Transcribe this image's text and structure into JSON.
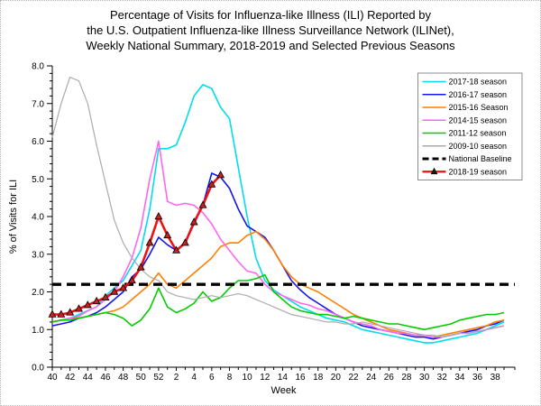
{
  "title": {
    "line1": "Percentage of Visits for Influenza-like Illness (ILI) Reported by",
    "line2": "the U.S. Outpatient Influenza-like Illness Surveillance Network (ILINet),",
    "line3": "Weekly National Summary, 2018-2019 and Selected Previous Seasons"
  },
  "axes": {
    "xlabel": "Week",
    "ylabel": "% of Visits for ILI",
    "y_tick_labels": [
      "0.0",
      "1.0",
      "2.0",
      "3.0",
      "4.0",
      "5.0",
      "6.0",
      "7.0",
      "8.0"
    ],
    "x_tick_labels": [
      "40",
      "42",
      "44",
      "46",
      "48",
      "50",
      "52",
      "2",
      "4",
      "6",
      "8",
      "10",
      "12",
      "14",
      "16",
      "18",
      "20",
      "22",
      "24",
      "26",
      "28",
      "30",
      "32",
      "34",
      "36",
      "38"
    ]
  },
  "chart_data": {
    "type": "line",
    "title": "Percentage of Visits for Influenza-like Illness (ILI) Reported by the U.S. Outpatient Influenza-like Illness Surveillance Network (ILINet), Weekly National Summary, 2018-2019 and Selected Previous Seasons",
    "xlabel": "Week",
    "ylabel": "% of Visits for ILI",
    "ylim": [
      0,
      8
    ],
    "grid": false,
    "legend_position": "top-right",
    "x_weeks": [
      40,
      41,
      42,
      43,
      44,
      45,
      46,
      47,
      48,
      49,
      50,
      51,
      52,
      1,
      2,
      3,
      4,
      5,
      6,
      7,
      8,
      9,
      10,
      11,
      12,
      13,
      14,
      15,
      16,
      17,
      18,
      19,
      20,
      21,
      22,
      23,
      24,
      25,
      26,
      27,
      28,
      29,
      30,
      31,
      32,
      33,
      34,
      35,
      36,
      37,
      38,
      39
    ],
    "baseline": {
      "label": "National Baseline",
      "value": 2.2,
      "color": "#000000",
      "style": "dashed"
    },
    "series": [
      {
        "name": "2017-18 season",
        "color": "#00DCF0",
        "values": [
          1.2,
          1.25,
          1.3,
          1.4,
          1.5,
          1.6,
          1.9,
          2.1,
          2.3,
          2.7,
          3.1,
          4.2,
          5.8,
          5.8,
          5.9,
          6.5,
          7.2,
          7.5,
          7.4,
          6.9,
          6.6,
          5.3,
          4.0,
          2.9,
          2.3,
          2.05,
          1.9,
          1.75,
          1.6,
          1.5,
          1.4,
          1.3,
          1.25,
          1.2,
          1.1,
          1.0,
          0.95,
          0.9,
          0.85,
          0.8,
          0.75,
          0.7,
          0.65,
          0.65,
          0.7,
          0.75,
          0.8,
          0.85,
          0.9,
          1.0,
          1.1,
          1.2
        ]
      },
      {
        "name": "2016-17 season",
        "color": "#1414F0",
        "values": [
          1.1,
          1.15,
          1.2,
          1.3,
          1.35,
          1.45,
          1.6,
          1.8,
          2.0,
          2.4,
          2.6,
          3.0,
          3.45,
          3.25,
          3.1,
          3.3,
          3.8,
          4.3,
          5.15,
          5.05,
          4.75,
          4.2,
          3.75,
          3.6,
          3.45,
          3.1,
          2.7,
          2.3,
          2.05,
          1.85,
          1.7,
          1.55,
          1.4,
          1.3,
          1.2,
          1.1,
          1.05,
          1.0,
          0.95,
          0.9,
          0.85,
          0.8,
          0.8,
          0.75,
          0.8,
          0.85,
          0.9,
          0.95,
          1.0,
          1.1,
          1.15,
          1.25
        ]
      },
      {
        "name": "2015-16 Season",
        "color": "#FF7F00",
        "values": [
          1.2,
          1.25,
          1.3,
          1.3,
          1.35,
          1.4,
          1.45,
          1.5,
          1.6,
          1.8,
          2.0,
          2.2,
          2.5,
          2.2,
          2.1,
          2.3,
          2.5,
          2.7,
          2.9,
          3.2,
          3.3,
          3.3,
          3.5,
          3.6,
          3.4,
          3.1,
          2.7,
          2.4,
          2.2,
          2.1,
          2.0,
          1.85,
          1.7,
          1.55,
          1.4,
          1.3,
          1.2,
          1.1,
          1.0,
          0.95,
          0.9,
          0.85,
          0.85,
          0.8,
          0.85,
          0.9,
          0.95,
          1.0,
          1.05,
          1.1,
          1.2,
          1.25
        ]
      },
      {
        "name": "2014-15 season",
        "color": "#FF66F0",
        "values": [
          1.2,
          1.25,
          1.3,
          1.35,
          1.5,
          1.6,
          1.8,
          2.0,
          2.4,
          2.9,
          3.7,
          5.0,
          6.0,
          4.4,
          4.3,
          4.35,
          4.3,
          4.1,
          3.8,
          3.4,
          3.1,
          2.8,
          2.55,
          2.5,
          2.2,
          2.0,
          1.9,
          1.8,
          1.7,
          1.65,
          1.55,
          1.5,
          1.4,
          1.3,
          1.2,
          1.15,
          1.1,
          1.0,
          0.95,
          0.9,
          0.9,
          0.85,
          0.85,
          0.8,
          0.8,
          0.85,
          0.9,
          0.9,
          0.95,
          1.0,
          1.05,
          1.1
        ]
      },
      {
        "name": "2011-12 season",
        "color": "#00CC00",
        "values": [
          1.2,
          1.25,
          1.25,
          1.3,
          1.35,
          1.4,
          1.45,
          1.4,
          1.3,
          1.1,
          1.25,
          1.55,
          2.1,
          1.6,
          1.45,
          1.55,
          1.7,
          2.0,
          1.75,
          1.85,
          2.1,
          2.3,
          2.3,
          2.35,
          2.45,
          2.0,
          1.8,
          1.6,
          1.5,
          1.45,
          1.4,
          1.4,
          1.35,
          1.3,
          1.35,
          1.3,
          1.25,
          1.2,
          1.15,
          1.15,
          1.1,
          1.05,
          1.0,
          1.05,
          1.1,
          1.15,
          1.25,
          1.3,
          1.35,
          1.4,
          1.4,
          1.45
        ]
      },
      {
        "name": "2009-10 season",
        "color": "#ABABAB",
        "values": [
          6.1,
          7.0,
          7.7,
          7.6,
          7.0,
          5.9,
          4.9,
          3.9,
          3.3,
          2.9,
          2.6,
          2.4,
          2.3,
          2.0,
          1.9,
          1.85,
          1.8,
          1.85,
          1.9,
          1.85,
          1.9,
          1.95,
          1.9,
          1.8,
          1.7,
          1.6,
          1.5,
          1.4,
          1.35,
          1.3,
          1.25,
          1.2,
          1.2,
          1.15,
          1.15,
          1.2,
          1.15,
          1.1,
          1.05,
          1.0,
          0.95,
          0.9,
          0.85,
          0.85,
          0.8,
          0.85,
          0.9,
          0.9,
          0.95,
          1.0,
          1.05,
          1.1
        ]
      },
      {
        "name": "2018-19 season",
        "color": "#EE1111",
        "marker": "triangle",
        "marker_fill": "#C42121",
        "values": [
          1.4,
          1.4,
          1.45,
          1.55,
          1.65,
          1.75,
          1.85,
          2.0,
          2.1,
          2.3,
          2.65,
          3.3,
          4.0,
          3.5,
          3.1,
          3.3,
          3.85,
          4.3,
          4.85,
          5.1
        ]
      }
    ]
  }
}
